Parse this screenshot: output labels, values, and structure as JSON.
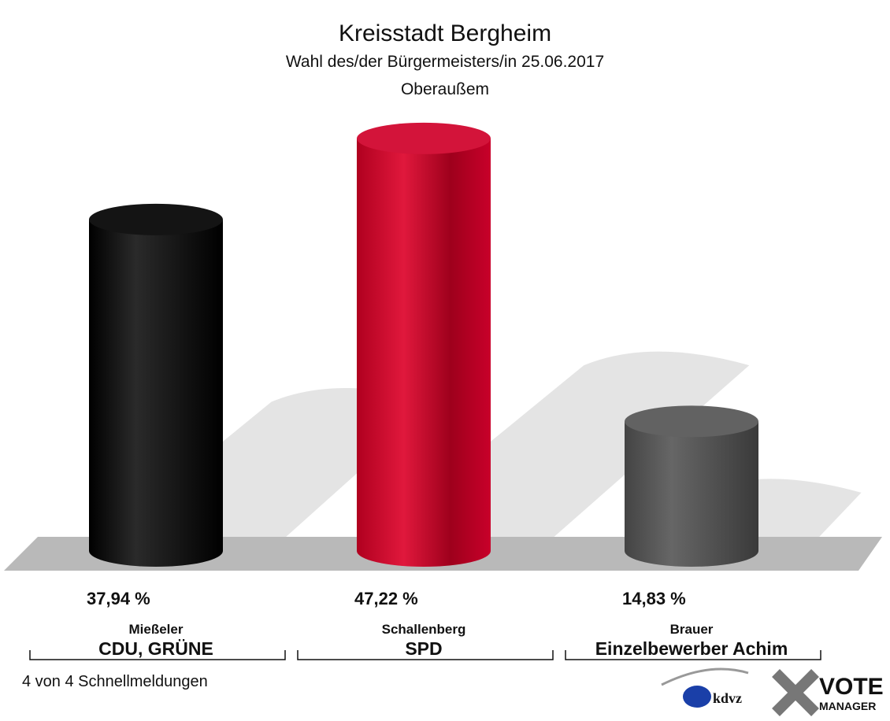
{
  "chart_data": {
    "type": "bar",
    "title": "Kreisstadt Bergheim",
    "subtitle": [
      "Wahl des/der Bürgermeisters/in 25.06.2017",
      "Oberaußem"
    ],
    "categories": [
      "Mießeler",
      "Schallenberg",
      "Brauer"
    ],
    "parties": [
      "CDU, GRÜNE",
      "SPD",
      "Einzelbewerber Achim"
    ],
    "values": [
      37.94,
      47.22,
      14.83
    ],
    "value_labels": [
      "37,94 %",
      "47,22 %",
      "14,83 %"
    ],
    "colors": [
      "#000000",
      "#d0002a",
      "#555555"
    ],
    "footnote": "4 von 4 Schnellmeldungen",
    "logo": [
      "kdvz",
      "VOTE",
      "MANAGER"
    ]
  }
}
